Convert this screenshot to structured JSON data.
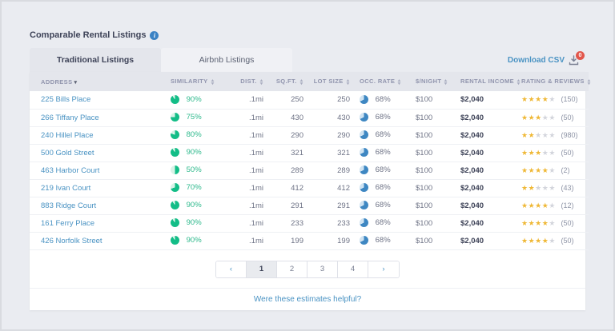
{
  "page": {
    "title": "Comparable Rental Listings",
    "download_label": "Download CSV",
    "download_badge": "0",
    "footer_link": "Were these estimates helpful?"
  },
  "tabs": [
    {
      "label": "Traditional Listings",
      "active": true
    },
    {
      "label": "Airbnb Listings",
      "active": false
    }
  ],
  "table": {
    "columns": [
      {
        "label": "Address",
        "sort": "desc",
        "align": "al",
        "key": "address"
      },
      {
        "label": "Similarity",
        "sort": "both",
        "align": "al",
        "key": "similarity"
      },
      {
        "label": "Dist.",
        "sort": "both",
        "align": "ar",
        "key": "dist"
      },
      {
        "label": "Sq.Ft.",
        "sort": "both",
        "align": "ar",
        "key": "sqft"
      },
      {
        "label": "Lot Size",
        "sort": "both",
        "align": "ar",
        "key": "lot_size"
      },
      {
        "label": "Occ. Rate",
        "sort": "both",
        "align": "al",
        "key": "occ_rate"
      },
      {
        "label": "$/Night",
        "sort": "both",
        "align": "al",
        "key": "night"
      },
      {
        "label": "Rental Income",
        "sort": "both",
        "align": "al",
        "key": "rental_income"
      },
      {
        "label": "Rating & Reviews",
        "sort": "both",
        "align": "al",
        "key": "rating"
      }
    ],
    "rows": [
      {
        "address": "225 Bills Place",
        "similarity": "90%",
        "similarity_pct": 90,
        "dist": ".1mi",
        "sqft": "250",
        "lot_size": "250",
        "occ_rate": "68%",
        "occ_pct": 68,
        "night": "$100",
        "rental_income": "$2,040",
        "stars": 4,
        "reviews": "(150)"
      },
      {
        "address": "266 Tiffany Place",
        "similarity": "75%",
        "similarity_pct": 75,
        "dist": ".1mi",
        "sqft": "430",
        "lot_size": "430",
        "occ_rate": "68%",
        "occ_pct": 68,
        "night": "$100",
        "rental_income": "$2,040",
        "stars": 3,
        "reviews": "(50)"
      },
      {
        "address": "240 Hillel Place",
        "similarity": "80%",
        "similarity_pct": 80,
        "dist": ".1mi",
        "sqft": "290",
        "lot_size": "290",
        "occ_rate": "68%",
        "occ_pct": 68,
        "night": "$100",
        "rental_income": "$2,040",
        "stars": 2,
        "reviews": "(980)"
      },
      {
        "address": "500 Gold Street",
        "similarity": "90%",
        "similarity_pct": 90,
        "dist": ".1mi",
        "sqft": "321",
        "lot_size": "321",
        "occ_rate": "68%",
        "occ_pct": 68,
        "night": "$100",
        "rental_income": "$2,040",
        "stars": 3,
        "reviews": "(50)"
      },
      {
        "address": "463 Harbor Court",
        "similarity": "50%",
        "similarity_pct": 50,
        "dist": ".1mi",
        "sqft": "289",
        "lot_size": "289",
        "occ_rate": "68%",
        "occ_pct": 68,
        "night": "$100",
        "rental_income": "$2,040",
        "stars": 4,
        "reviews": "(2)"
      },
      {
        "address": "219 Ivan Court",
        "similarity": "70%",
        "similarity_pct": 70,
        "dist": ".1mi",
        "sqft": "412",
        "lot_size": "412",
        "occ_rate": "68%",
        "occ_pct": 68,
        "night": "$100",
        "rental_income": "$2,040",
        "stars": 2,
        "reviews": "(43)"
      },
      {
        "address": "883 Ridge Court",
        "similarity": "90%",
        "similarity_pct": 90,
        "dist": ".1mi",
        "sqft": "291",
        "lot_size": "291",
        "occ_rate": "68%",
        "occ_pct": 68,
        "night": "$100",
        "rental_income": "$2,040",
        "stars": 4,
        "reviews": "(12)"
      },
      {
        "address": "161 Ferry Place",
        "similarity": "90%",
        "similarity_pct": 90,
        "dist": ".1mi",
        "sqft": "233",
        "lot_size": "233",
        "occ_rate": "68%",
        "occ_pct": 68,
        "night": "$100",
        "rental_income": "$2,040",
        "stars": 4,
        "reviews": "(50)"
      },
      {
        "address": "426 Norfolk Street",
        "similarity": "90%",
        "similarity_pct": 90,
        "dist": ".1mi",
        "sqft": "199",
        "lot_size": "199",
        "occ_rate": "68%",
        "occ_pct": 68,
        "night": "$100",
        "rental_income": "$2,040",
        "stars": 4,
        "reviews": "(50)"
      }
    ]
  },
  "pagination": {
    "prev": "‹",
    "pages": [
      "1",
      "2",
      "3",
      "4"
    ],
    "active": "1",
    "next": "›"
  },
  "colors": {
    "green": "#13bd87",
    "green_bg": "#d9f3e8",
    "blue": "#3e87c2",
    "blue_bg": "#cfe3f2",
    "accent_link": "#4a93c3",
    "star_gold": "#efb836",
    "badge_red": "#e2574c"
  }
}
